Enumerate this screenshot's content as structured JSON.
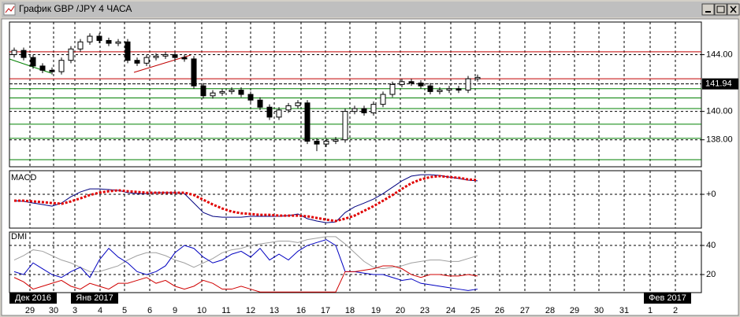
{
  "window": {
    "title": "График GBP /JPY  4 ЧАСА"
  },
  "x_axis": {
    "days": [
      "29",
      "30",
      "3",
      "4",
      "5",
      "6",
      "9",
      "10",
      "11",
      "12",
      "13",
      "16",
      "17",
      "18",
      "19",
      "20",
      "23",
      "24",
      "25",
      "26",
      "27",
      "28",
      "29",
      "30",
      "31",
      "1",
      "2"
    ],
    "months": [
      "Дек 2016",
      "Янв 2017",
      "Фев 2017"
    ]
  },
  "chart_data": [
    {
      "type": "candlestick",
      "open": [
        144.0,
        144.3,
        143.8,
        143.2,
        142.9,
        142.8,
        143.6,
        144.4,
        144.9,
        145.3,
        145.0,
        144.8,
        144.9,
        143.6,
        143.4,
        143.8,
        143.9,
        144.0,
        143.8,
        143.7,
        141.8,
        141.1,
        141.3,
        141.4,
        141.5,
        141.2,
        140.8,
        140.3,
        139.6,
        140.1,
        140.4,
        140.6,
        137.9,
        137.7,
        137.9,
        138.0,
        140.0,
        140.2,
        139.9,
        140.5,
        141.2,
        141.9,
        142.1,
        142.0,
        141.8,
        141.4,
        141.5,
        141.6,
        141.5,
        142.3
      ],
      "high": [
        144.5,
        144.5,
        144.0,
        143.4,
        143.1,
        143.8,
        144.6,
        145.1,
        145.5,
        145.5,
        145.2,
        145.1,
        145.1,
        143.8,
        144.0,
        144.1,
        144.2,
        144.2,
        144.0,
        143.9,
        142.0,
        141.5,
        141.6,
        141.7,
        141.7,
        141.4,
        141.0,
        140.5,
        140.3,
        140.6,
        140.8,
        140.8,
        138.1,
        138.1,
        138.2,
        140.2,
        140.4,
        140.4,
        140.7,
        141.4,
        142.1,
        142.3,
        142.3,
        142.2,
        142.0,
        141.7,
        141.8,
        141.8,
        142.5,
        142.6
      ],
      "low": [
        143.8,
        143.6,
        143.0,
        142.7,
        142.6,
        142.6,
        143.4,
        144.2,
        144.7,
        144.8,
        144.6,
        144.6,
        143.4,
        143.2,
        143.2,
        143.6,
        143.7,
        143.6,
        143.5,
        141.6,
        140.9,
        140.9,
        141.1,
        141.2,
        141.0,
        140.6,
        140.1,
        139.4,
        139.4,
        139.9,
        140.2,
        137.7,
        137.2,
        137.5,
        137.7,
        137.8,
        139.8,
        139.7,
        139.7,
        140.3,
        141.0,
        141.7,
        141.8,
        141.6,
        141.2,
        141.2,
        141.3,
        141.3,
        141.3,
        142.1
      ],
      "close": [
        144.3,
        143.8,
        143.2,
        142.9,
        142.8,
        143.6,
        144.4,
        144.9,
        145.3,
        145.0,
        144.8,
        144.9,
        143.6,
        143.4,
        143.8,
        143.9,
        144.0,
        143.8,
        143.7,
        141.8,
        141.1,
        141.3,
        141.4,
        141.5,
        141.2,
        140.8,
        140.3,
        139.6,
        140.1,
        140.4,
        140.6,
        137.9,
        137.7,
        137.9,
        138.0,
        140.0,
        140.2,
        139.9,
        140.5,
        141.2,
        141.9,
        142.1,
        142.0,
        141.8,
        141.4,
        141.5,
        141.6,
        141.5,
        142.3,
        142.4
      ],
      "ylim": [
        136.1,
        146.3
      ],
      "yticks": [
        {
          "value": 144,
          "label": "144.00"
        },
        {
          "value": 140,
          "label": "140.00"
        },
        {
          "value": 138,
          "label": "138.00"
        }
      ],
      "current_price": {
        "value": 141.94,
        "label": "141.94"
      },
      "levels": [
        {
          "value": 144.2,
          "color": "#c00000"
        },
        {
          "value": 142.3,
          "color": "#c00000"
        },
        {
          "value": 141.6,
          "color": "#008000"
        },
        {
          "value": 140.95,
          "color": "#008000"
        },
        {
          "value": 140.2,
          "color": "#008000"
        },
        {
          "value": 139.1,
          "color": "#008000"
        },
        {
          "value": 138.1,
          "color": "#008000"
        },
        {
          "value": 136.6,
          "color": "#008000"
        }
      ],
      "grid": true
    },
    {
      "type": "line",
      "title": "MACD",
      "series": [
        {
          "color": "#000080",
          "style": "solid",
          "values": [
            -0.27,
            -0.3,
            -0.37,
            -0.43,
            -0.5,
            -0.37,
            -0.1,
            0.1,
            0.23,
            0.23,
            0.2,
            0.17,
            0.07,
            0.03,
            0.03,
            0.07,
            0.07,
            0.07,
            0.03,
            -0.37,
            -0.77,
            -0.93,
            -0.97,
            -0.97,
            -0.97,
            -0.93,
            -0.93,
            -0.93,
            -0.93,
            -0.9,
            -0.83,
            -1.03,
            -1.13,
            -1.2,
            -1.17,
            -0.77,
            -0.53,
            -0.37,
            -0.2,
            0.03,
            0.3,
            0.57,
            0.77,
            0.83,
            0.83,
            0.8,
            0.73,
            0.67,
            0.6,
            0.57
          ]
        },
        {
          "color": "#e00000",
          "style": "dotted",
          "values": [
            -0.27,
            -0.27,
            -0.3,
            -0.33,
            -0.37,
            -0.4,
            -0.3,
            -0.17,
            -0.03,
            0.07,
            0.13,
            0.17,
            0.13,
            0.1,
            0.07,
            0.07,
            0.07,
            0.07,
            0.07,
            -0.03,
            -0.23,
            -0.43,
            -0.6,
            -0.73,
            -0.8,
            -0.83,
            -0.87,
            -0.87,
            -0.9,
            -0.9,
            -0.9,
            -0.93,
            -1.0,
            -1.07,
            -1.13,
            -1.03,
            -0.9,
            -0.7,
            -0.5,
            -0.27,
            -0.03,
            0.23,
            0.47,
            0.63,
            0.73,
            0.77,
            0.73,
            0.7,
            0.63,
            0.6
          ]
        }
      ],
      "ylim": [
        -1.43,
        1.0
      ],
      "yticks": [
        {
          "value": 0,
          "label": "+0"
        }
      ],
      "grid": true
    },
    {
      "type": "line",
      "title": "DMI",
      "series": [
        {
          "color": "#a0a0a0",
          "style": "solid",
          "values": [
            30,
            33,
            37,
            36,
            33,
            30,
            28,
            25,
            22,
            22,
            24,
            26,
            30,
            33,
            35,
            35,
            33,
            30,
            28,
            25,
            28,
            31,
            35,
            37,
            38,
            40,
            41,
            42,
            43,
            43,
            42,
            44,
            45,
            46,
            46,
            41,
            35,
            29,
            25,
            24,
            25,
            26,
            28,
            29,
            30,
            30,
            29,
            29,
            31,
            33
          ]
        },
        {
          "color": "#0000c0",
          "style": "solid",
          "values": [
            22,
            20,
            28,
            24,
            20,
            18,
            22,
            25,
            18,
            30,
            38,
            32,
            28,
            22,
            20,
            22,
            26,
            35,
            40,
            38,
            32,
            28,
            30,
            34,
            36,
            32,
            38,
            30,
            34,
            30,
            36,
            40,
            42,
            44,
            40,
            22,
            22,
            21,
            20,
            20,
            18,
            16,
            17,
            14,
            13,
            12,
            11,
            10,
            9,
            10
          ]
        },
        {
          "color": "#d00000",
          "style": "solid",
          "values": [
            18,
            15,
            10,
            12,
            14,
            16,
            12,
            10,
            14,
            12,
            10,
            14,
            14,
            16,
            18,
            14,
            16,
            12,
            10,
            12,
            16,
            14,
            10,
            10,
            12,
            10,
            8,
            8,
            8,
            8,
            8,
            8,
            8,
            8,
            8,
            22,
            22,
            23,
            24,
            26,
            26,
            24,
            20,
            18,
            20,
            20,
            19,
            19,
            20,
            19
          ]
        }
      ],
      "ylim": [
        7.6,
        49.2
      ],
      "yticks": [
        40,
        20
      ],
      "grid": true
    }
  ]
}
